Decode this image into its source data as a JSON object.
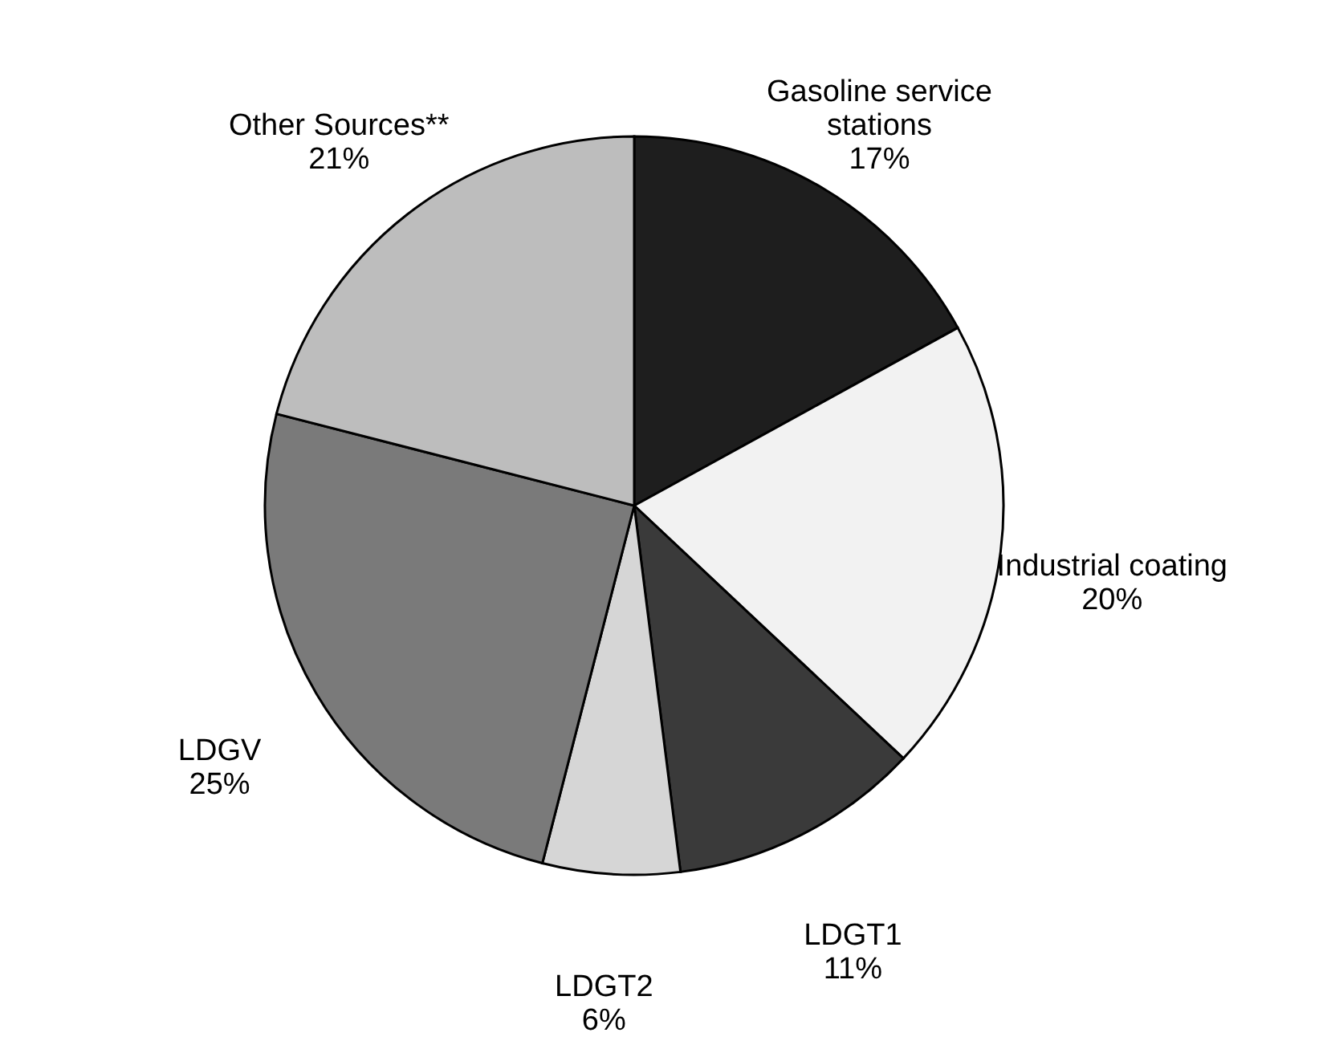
{
  "chart_data": {
    "type": "pie",
    "categories": [
      "Gasoline service stations",
      "Industrial coating",
      "LDGT1",
      "LDGT2",
      "LDGV",
      "Other Sources**"
    ],
    "values": [
      17,
      20,
      11,
      6,
      25,
      21
    ],
    "value_labels": [
      "17%",
      "20%",
      "11%",
      "6%",
      "25%",
      "21%"
    ],
    "colors": [
      "#1e1e1e",
      "#f2f2f2",
      "#3a3a3a",
      "#d6d6d6",
      "#7a7a7a",
      "#bdbdbd"
    ],
    "legend": false
  }
}
